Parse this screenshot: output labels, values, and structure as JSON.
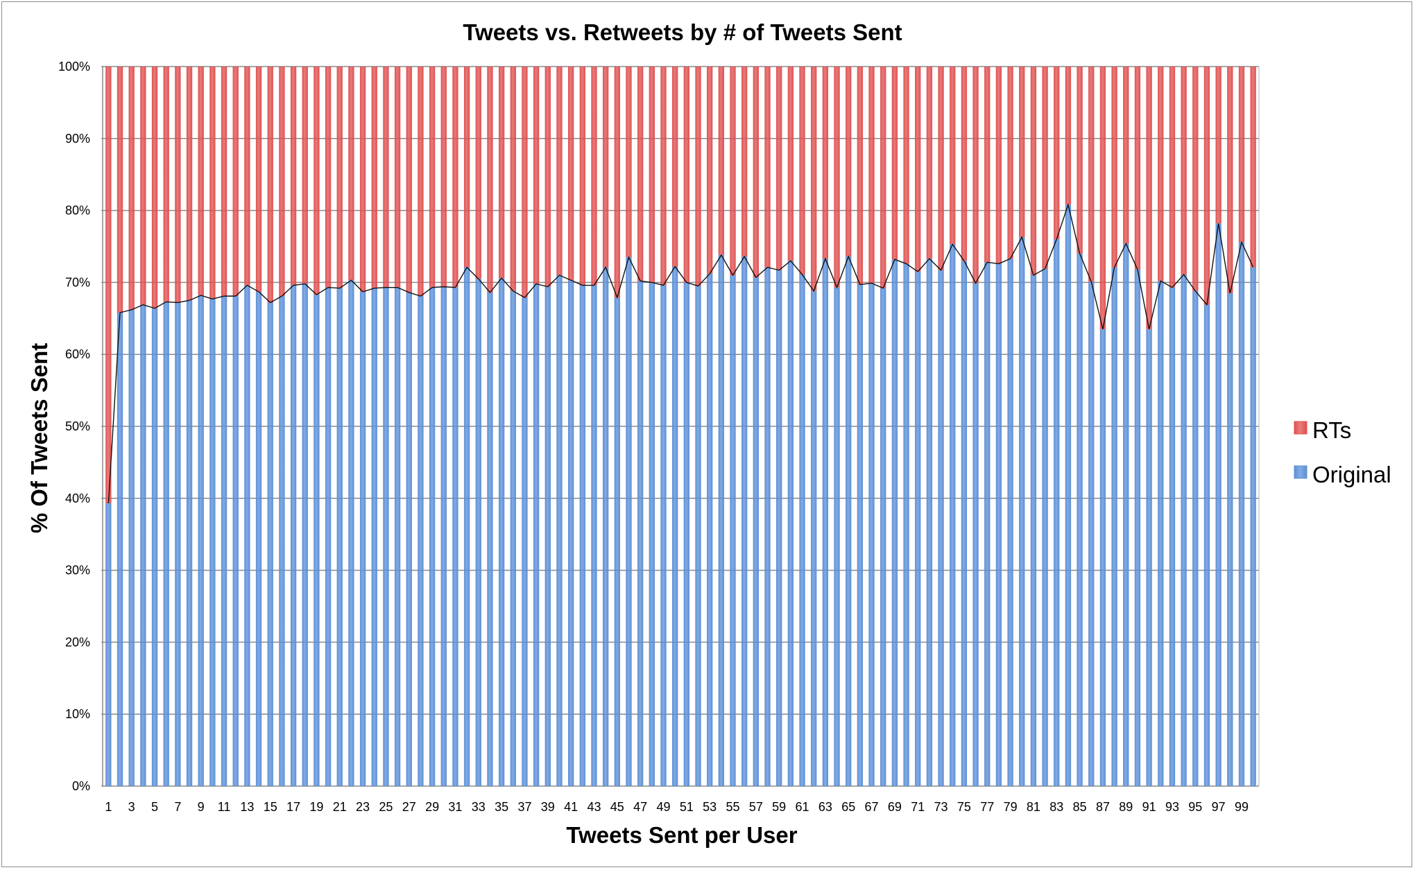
{
  "chart_data": {
    "type": "bar",
    "stacked": "percent",
    "title": "Tweets vs. Retweets by # of Tweets Sent",
    "xlabel": "Tweets Sent per User",
    "ylabel": "% Of Tweets Sent",
    "ylim": [
      0,
      100
    ],
    "yticks": [
      "0%",
      "10%",
      "20%",
      "30%",
      "40%",
      "50%",
      "60%",
      "70%",
      "80%",
      "90%",
      "100%"
    ],
    "x_tick_labels": [
      "1",
      "3",
      "5",
      "7",
      "9",
      "11",
      "13",
      "15",
      "17",
      "19",
      "21",
      "23",
      "25",
      "27",
      "29",
      "31",
      "33",
      "35",
      "37",
      "39",
      "41",
      "43",
      "45",
      "47",
      "49",
      "51",
      "53",
      "55",
      "57",
      "59",
      "61",
      "63",
      "65",
      "67",
      "69",
      "71",
      "73",
      "75",
      "77",
      "79",
      "81",
      "83",
      "85",
      "87",
      "89",
      "91",
      "93",
      "95",
      "97",
      "99"
    ],
    "x": [
      1,
      2,
      3,
      4,
      5,
      6,
      7,
      8,
      9,
      10,
      11,
      12,
      13,
      14,
      15,
      16,
      17,
      18,
      19,
      20,
      21,
      22,
      23,
      24,
      25,
      26,
      27,
      28,
      29,
      30,
      31,
      32,
      33,
      34,
      35,
      36,
      37,
      38,
      39,
      40,
      41,
      42,
      43,
      44,
      45,
      46,
      47,
      48,
      49,
      50,
      51,
      52,
      53,
      54,
      55,
      56,
      57,
      58,
      59,
      60,
      61,
      62,
      63,
      64,
      65,
      66,
      67,
      68,
      69,
      70,
      71,
      72,
      73,
      74,
      75,
      76,
      77,
      78,
      79,
      80,
      81,
      82,
      83,
      84,
      85,
      86,
      87,
      88,
      89,
      90,
      91,
      92,
      93,
      94,
      95,
      96,
      97,
      98,
      99,
      100
    ],
    "grid": true,
    "legend": "right",
    "series": [
      {
        "name": "Original",
        "color": "#5b8fd8",
        "values": [
          39.3,
          65.8,
          66.2,
          66.9,
          66.4,
          67.3,
          67.2,
          67.5,
          68.2,
          67.7,
          68.1,
          68.1,
          69.6,
          68.7,
          67.2,
          68.1,
          69.6,
          69.8,
          68.3,
          69.3,
          69.2,
          70.3,
          68.7,
          69.2,
          69.3,
          69.3,
          68.6,
          68.1,
          69.3,
          69.4,
          69.3,
          72.1,
          70.5,
          68.6,
          70.6,
          68.8,
          67.9,
          69.8,
          69.4,
          71.0,
          70.3,
          69.6,
          69.6,
          72.1,
          67.9,
          73.5,
          70.2,
          70.0,
          69.6,
          72.2,
          70.0,
          69.5,
          71.2,
          73.8,
          71.0,
          73.6,
          70.7,
          72.1,
          71.7,
          73.0,
          71.1,
          68.8,
          73.3,
          69.3,
          73.6,
          69.7,
          69.9,
          69.2,
          73.2,
          72.6,
          71.5,
          73.3,
          71.7,
          75.3,
          73.0,
          69.9,
          72.8,
          72.6,
          73.3,
          76.3,
          71.0,
          71.9,
          76.0,
          80.8,
          74.0,
          70.1,
          63.5,
          72.1,
          75.4,
          71.8,
          63.5,
          70.2,
          69.3,
          71.1,
          68.8,
          66.9,
          78.2,
          68.5,
          75.6,
          72.1
        ]
      },
      {
        "name": "RTs",
        "color": "#e05050",
        "values": [
          60.7,
          34.2,
          33.8,
          33.1,
          33.6,
          32.7,
          32.8,
          32.5,
          31.8,
          32.3,
          31.9,
          31.9,
          30.4,
          31.3,
          32.8,
          31.9,
          30.4,
          30.2,
          31.7,
          30.7,
          30.8,
          29.7,
          31.3,
          30.8,
          30.7,
          30.7,
          31.4,
          31.9,
          30.7,
          30.6,
          30.7,
          27.9,
          29.5,
          31.4,
          29.4,
          31.2,
          32.1,
          30.2,
          30.6,
          29.0,
          29.7,
          30.4,
          30.4,
          27.9,
          32.1,
          26.5,
          29.8,
          30.0,
          30.4,
          27.8,
          30.0,
          30.5,
          28.8,
          26.2,
          29.0,
          26.4,
          29.3,
          27.9,
          28.3,
          27.0,
          28.9,
          31.2,
          26.7,
          30.7,
          26.4,
          30.3,
          30.1,
          30.8,
          26.8,
          27.4,
          28.5,
          26.7,
          28.3,
          24.7,
          27.0,
          30.1,
          27.2,
          27.4,
          26.7,
          23.7,
          29.0,
          28.1,
          24.0,
          19.2,
          26.0,
          29.9,
          36.5,
          27.9,
          24.6,
          28.2,
          36.5,
          29.8,
          30.7,
          28.9,
          31.2,
          33.1,
          21.8,
          31.5,
          24.4,
          27.9
        ]
      }
    ],
    "legend_items": [
      {
        "name": "RTs",
        "color": "#e05050"
      },
      {
        "name": "Original",
        "color": "#5b8fd8"
      }
    ]
  }
}
